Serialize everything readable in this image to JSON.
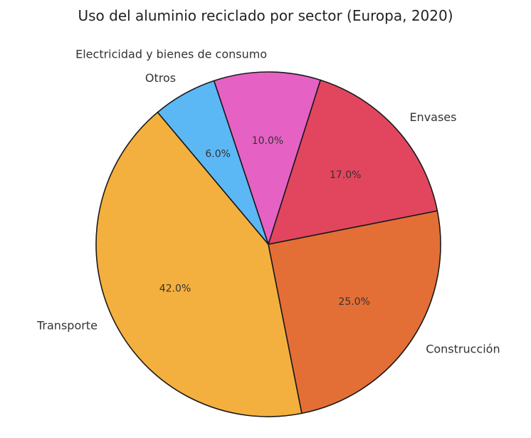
{
  "chart_data": {
    "type": "pie",
    "title": "Uso del aluminio reciclado por sector (Europa, 2020)",
    "startangle_deg": 130,
    "direction": "counterclockwise",
    "slices": [
      {
        "label": "Transporte",
        "value": 42.0,
        "pct_label": "42.0%",
        "color": "#f4b03e"
      },
      {
        "label": "Construcción",
        "value": 25.0,
        "pct_label": "25.0%",
        "color": "#e46f36"
      },
      {
        "label": "Envases",
        "value": 17.0,
        "pct_label": "17.0%",
        "color": "#e1465e"
      },
      {
        "label": "Electricidad y bienes de consumo",
        "value": 10.0,
        "pct_label": "10.0%",
        "color": "#e562c4"
      },
      {
        "label": "Otros",
        "value": 6.0,
        "pct_label": "6.0%",
        "color": "#5bb8f5"
      }
    ]
  }
}
